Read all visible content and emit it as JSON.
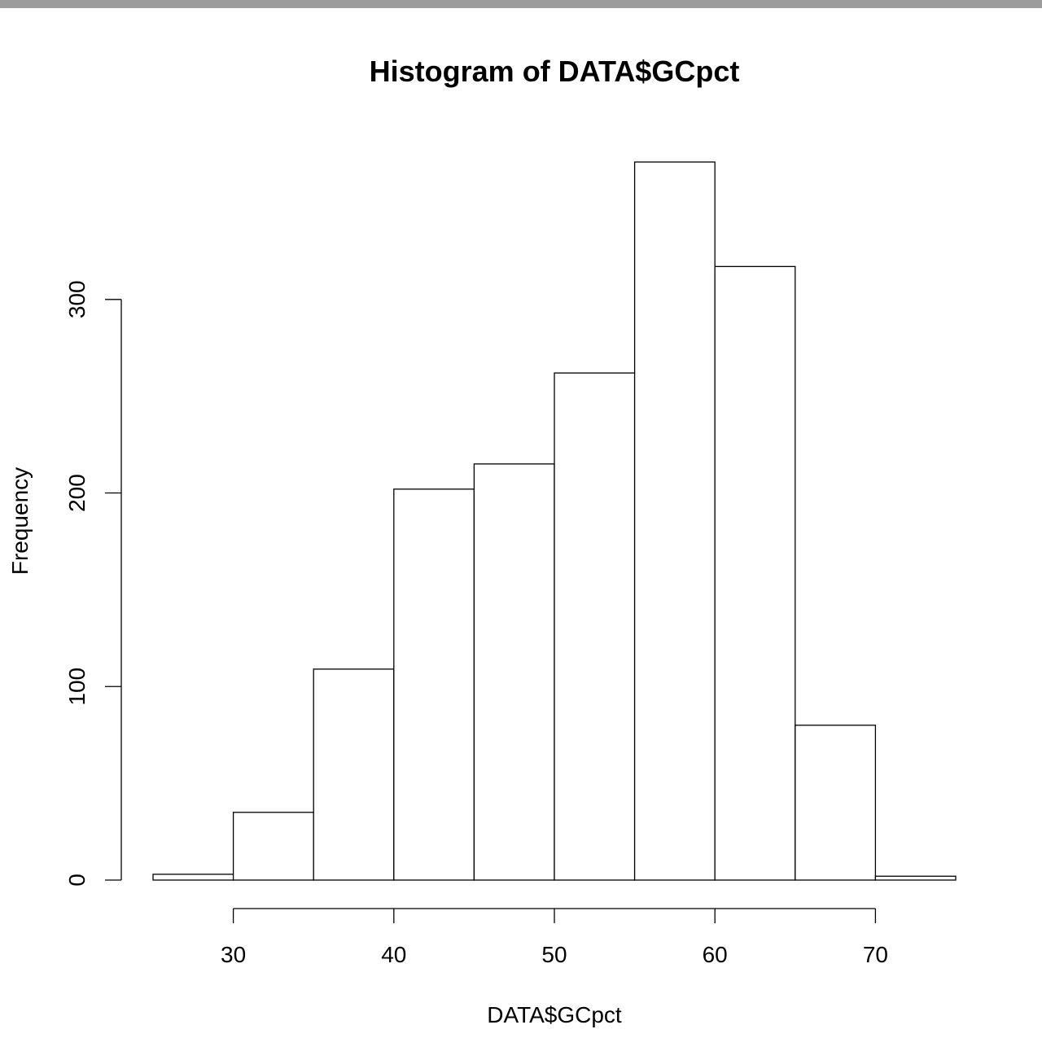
{
  "window": {
    "top_bar_color": "#9c9c9c"
  },
  "chart_data": {
    "type": "bar",
    "title": "Histogram of DATA$GCpct",
    "xlabel": "DATA$GCpct",
    "ylabel": "Frequency",
    "bins": [
      {
        "from": 25,
        "to": 30,
        "count": 3
      },
      {
        "from": 30,
        "to": 35,
        "count": 35
      },
      {
        "from": 35,
        "to": 40,
        "count": 109
      },
      {
        "from": 40,
        "to": 45,
        "count": 202
      },
      {
        "from": 45,
        "to": 50,
        "count": 215
      },
      {
        "from": 50,
        "to": 55,
        "count": 262
      },
      {
        "from": 55,
        "to": 60,
        "count": 371
      },
      {
        "from": 60,
        "to": 65,
        "count": 317
      },
      {
        "from": 65,
        "to": 70,
        "count": 80
      },
      {
        "from": 70,
        "to": 75,
        "count": 2
      }
    ],
    "x_ticks": [
      30,
      40,
      50,
      60,
      70
    ],
    "y_ticks": [
      0,
      100,
      200,
      300
    ],
    "xlim": [
      25,
      75
    ],
    "ylim": [
      0,
      371
    ],
    "grid": false,
    "bar_fill": "#ffffff",
    "bar_stroke": "#000000"
  }
}
